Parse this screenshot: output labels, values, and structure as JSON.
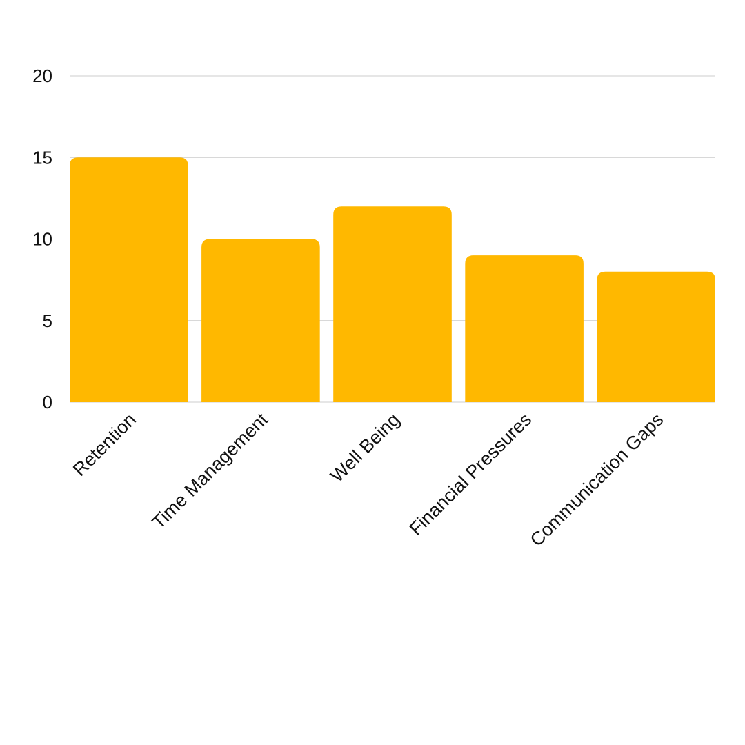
{
  "chart_data": {
    "type": "bar",
    "categories": [
      "Retention",
      "Time Management",
      "Well Being",
      "Financial Pressures",
      "Communication Gaps"
    ],
    "series": [
      {
        "values": [
          15,
          10,
          12,
          9,
          8
        ]
      }
    ],
    "yticks": [
      "0",
      "5",
      "10",
      "15",
      "20"
    ],
    "ylim": [
      0,
      20
    ],
    "grid": true,
    "legend": "none",
    "bar_color": "#FFB800",
    "grid_color": "#cccccc"
  }
}
